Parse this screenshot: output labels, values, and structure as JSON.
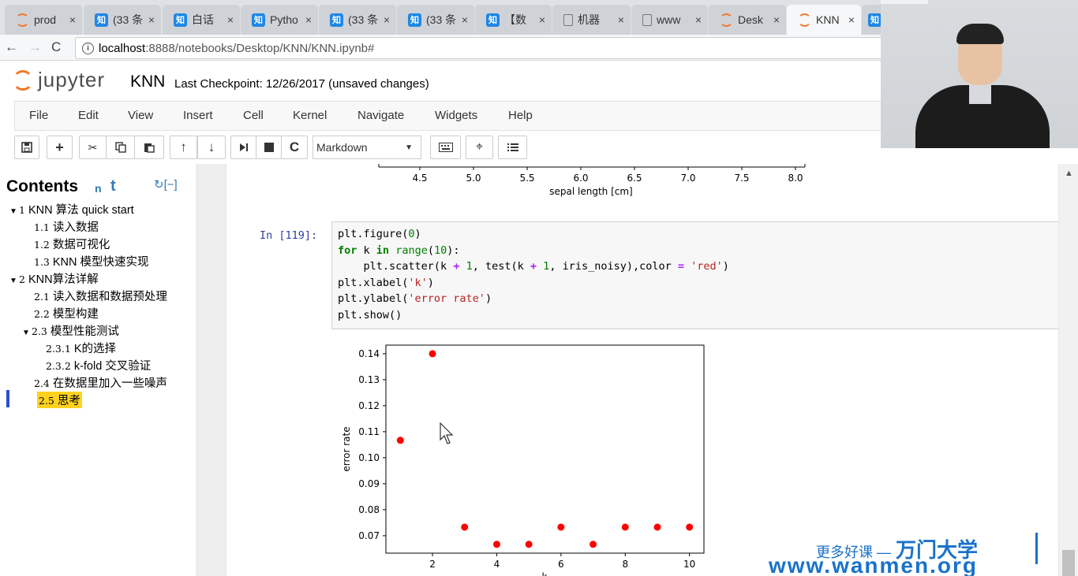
{
  "browser": {
    "tabs": [
      {
        "icon": "jupyter-icon",
        "label": "prod",
        "active": false
      },
      {
        "icon": "zhihu-icon",
        "label": "(33 条",
        "active": false
      },
      {
        "icon": "zhihu-icon",
        "label": "白话",
        "active": false
      },
      {
        "icon": "zhihu-icon",
        "label": "Pytho",
        "active": false
      },
      {
        "icon": "zhihu-icon",
        "label": "(33 条",
        "active": false
      },
      {
        "icon": "zhihu-icon",
        "label": "(33 条",
        "active": false
      },
      {
        "icon": "zhihu-icon",
        "label": "【数",
        "active": false
      },
      {
        "icon": "doc-icon",
        "label": "机器",
        "active": false
      },
      {
        "icon": "doc-icon",
        "label": "www",
        "active": false
      },
      {
        "icon": "jupyter-icon",
        "label": "Desk",
        "active": false
      },
      {
        "icon": "jupyter-icon",
        "label": "KNN",
        "active": true
      },
      {
        "icon": "zhihu-icon",
        "label": "",
        "active": false
      }
    ],
    "zhihu_glyph": "知",
    "close_glyph": "×",
    "url_host": "localhost",
    "url_path": ":8888/notebooks/Desktop/KNN/KNN.ipynb#"
  },
  "jupyter": {
    "logo_text": "jupyter",
    "notebook_title": "KNN",
    "checkpoint": "Last Checkpoint: 12/26/2017 (unsaved changes)",
    "menu": [
      "File",
      "Edit",
      "View",
      "Insert",
      "Cell",
      "Kernel",
      "Navigate",
      "Widgets",
      "Help"
    ],
    "cell_type": "Markdown"
  },
  "toc": {
    "title": "Contents",
    "n": "n",
    "t": "t",
    "refresh": "↻[−]",
    "items": [
      {
        "num": "1",
        "label": "KNN 算法 quick start",
        "caret": "▼",
        "level": 0
      },
      {
        "num": "1.1",
        "label": "读入数据",
        "caret": "",
        "level": 1
      },
      {
        "num": "1.2",
        "label": "数据可视化",
        "caret": "",
        "level": 1
      },
      {
        "num": "1.3",
        "label": "KNN 模型快速实现",
        "caret": "",
        "level": 1
      },
      {
        "num": "2",
        "label": "KNN算法详解",
        "caret": "▼",
        "level": 0
      },
      {
        "num": "2.1",
        "label": "读入数据和数据预处理",
        "caret": "",
        "level": 1
      },
      {
        "num": "2.2",
        "label": "模型构建",
        "caret": "",
        "level": 1
      },
      {
        "num": "2.3",
        "label": "模型性能测试",
        "caret": "▼",
        "level": 1
      },
      {
        "num": "2.3.1",
        "label": "K的选择",
        "caret": "",
        "level": 2
      },
      {
        "num": "2.3.2",
        "label": "k-fold 交叉验证",
        "caret": "",
        "level": 2
      },
      {
        "num": "2.4",
        "label": "在数据里加入一些噪声",
        "caret": "",
        "level": 1
      },
      {
        "num": "2.5",
        "label": "思考",
        "caret": "",
        "level": 1,
        "highlight": true
      }
    ]
  },
  "cell": {
    "prompt": "In  [119]:",
    "code_lines": [
      "plt.figure(0)",
      "for k in range(10):",
      "    plt.scatter(k + 1, test(k + 1, iris_noisy),color = 'red')",
      "plt.xlabel('k')",
      "plt.ylabel('error rate')",
      "plt.show()"
    ]
  },
  "chart_data": [
    {
      "type": "scatter",
      "note_partial": "previous output, only x-axis visible",
      "xticks": [
        "4.5",
        "5.0",
        "5.5",
        "6.0",
        "6.5",
        "7.0",
        "7.5",
        "8.0"
      ],
      "xlabel": "sepal length [cm]"
    },
    {
      "type": "scatter",
      "x": [
        1,
        2,
        3,
        4,
        5,
        6,
        7,
        8,
        9,
        10
      ],
      "y": [
        0.1067,
        0.14,
        0.0733,
        0.0667,
        0.0667,
        0.0733,
        0.0667,
        0.0733,
        0.0733,
        0.0733
      ],
      "color": "#ff0000",
      "xlabel": "k",
      "ylabel": "error rate",
      "xticks": [
        "2",
        "4",
        "6",
        "8",
        "10"
      ],
      "yticks": [
        "0.07",
        "0.08",
        "0.09",
        "0.10",
        "0.11",
        "0.12",
        "0.13",
        "0.14"
      ],
      "xlim": [
        0.55,
        10.45
      ],
      "ylim": [
        0.0633,
        0.1433
      ]
    }
  ],
  "watermark": {
    "slogan": "更多好课 —",
    "brand": "万门大学",
    "url": "www.wanmen.org"
  }
}
